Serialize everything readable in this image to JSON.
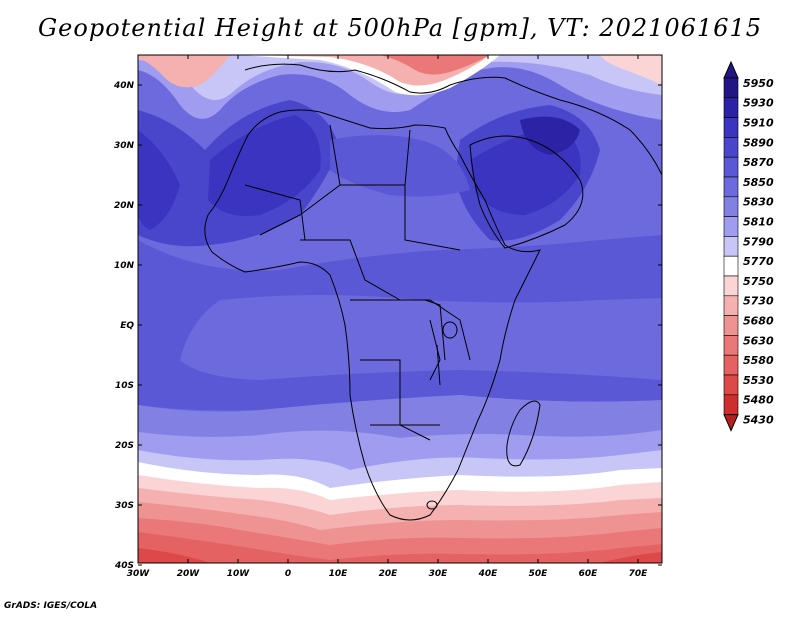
{
  "title": "Geopotential Height at 500hPa [gpm], VT: 2021061615",
  "credit": "GrADS: IGES/COLA",
  "map": {
    "lon_labels": [
      "30W",
      "20W",
      "10W",
      "0",
      "10E",
      "20E",
      "30E",
      "40E",
      "50E",
      "60E",
      "70E"
    ],
    "lat_labels": [
      "40N",
      "30N",
      "20N",
      "10N",
      "EQ",
      "10S",
      "20S",
      "30S",
      "40S"
    ]
  },
  "colorbar": {
    "levels": [
      "5950",
      "5930",
      "5910",
      "5890",
      "5870",
      "5850",
      "5830",
      "5810",
      "5790",
      "5770",
      "5750",
      "5730",
      "5680",
      "5630",
      "5580",
      "5530",
      "5480",
      "5430"
    ],
    "colors": [
      "#241585",
      "#2b22a6",
      "#3a34c0",
      "#4a46cc",
      "#5b58d6",
      "#6d6add",
      "#8380e3",
      "#a09df0",
      "#c7c6f6",
      "#ffffff",
      "#fbd5d5",
      "#f5b0b0",
      "#ef9292",
      "#ea7878",
      "#e56262",
      "#dd4848",
      "#cd2e2e",
      "#b51f1f"
    ]
  }
}
